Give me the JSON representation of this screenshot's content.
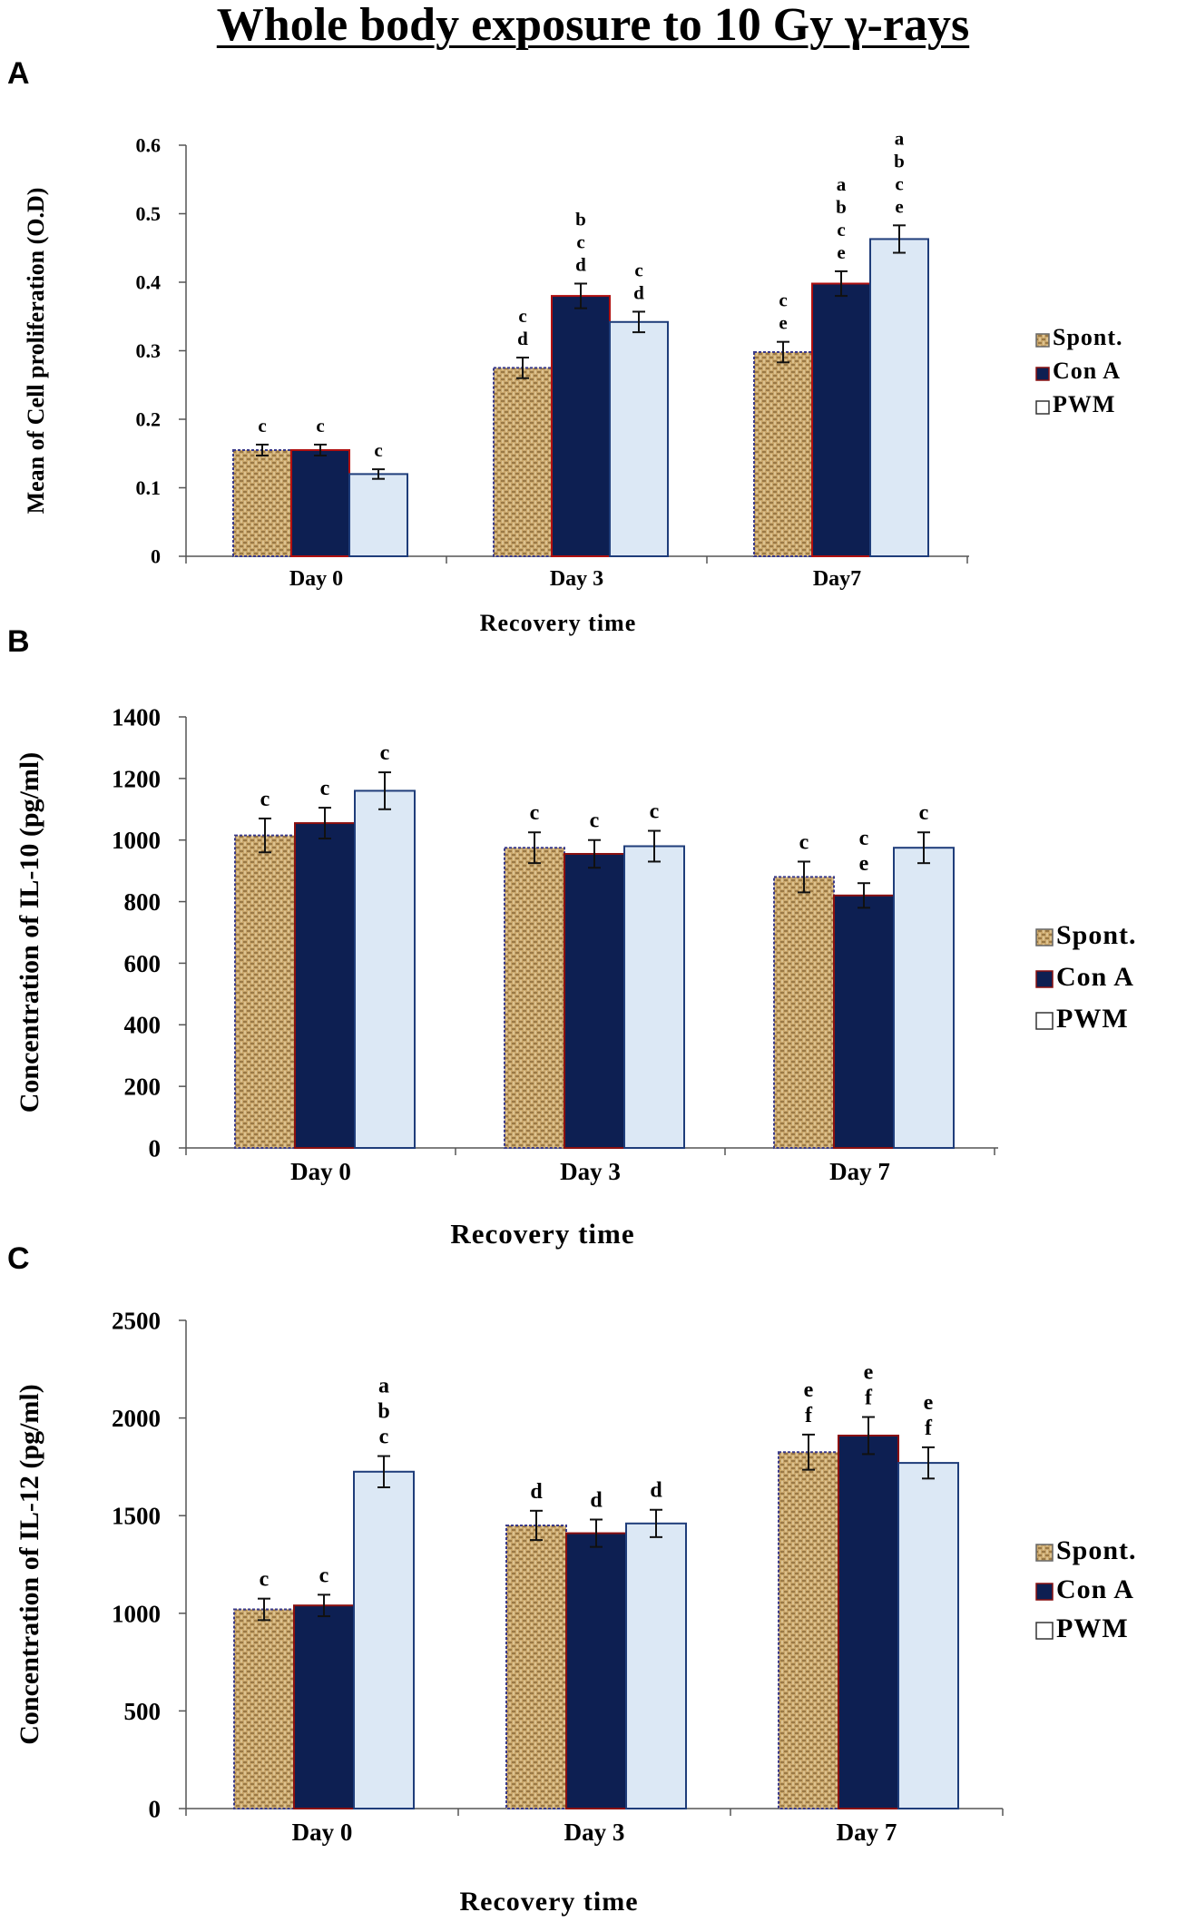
{
  "figure_title": "Whole body exposure to 10 Gy γ-rays",
  "colors": {
    "spont": "#c9a66b",
    "spont_dark": "#8a6a3a",
    "cona": "#0d1f52",
    "pwm": "#dce8f5",
    "pwm_border": "#1f3d7a"
  },
  "chart_data": [
    {
      "panel": "A",
      "type": "bar",
      "title": "",
      "xlabel": "Recovery time",
      "ylabel": "Mean of Cell proliferation (O.D)",
      "ylim": [
        0,
        0.6
      ],
      "yticks": [
        "0",
        "0.1",
        "0.2",
        "0.3",
        "0.4",
        "0.5",
        "0.6"
      ],
      "categories": [
        "Day 0",
        "Day 3",
        "Day7"
      ],
      "legend": [
        "Spont.",
        "Con A",
        "PWM"
      ],
      "series": [
        {
          "name": "Spont.",
          "values": [
            0.155,
            0.275,
            0.298
          ],
          "errors": [
            0.008,
            0.015,
            0.015
          ],
          "labels": [
            "c",
            "c\nd",
            "c\ne"
          ]
        },
        {
          "name": "Con A",
          "values": [
            0.155,
            0.38,
            0.398
          ],
          "errors": [
            0.008,
            0.018,
            0.018
          ],
          "labels": [
            "c",
            "b\nc\nd",
            "a\nb\nc\ne"
          ]
        },
        {
          "name": "PWM",
          "values": [
            0.12,
            0.342,
            0.463
          ],
          "errors": [
            0.007,
            0.015,
            0.02
          ],
          "labels": [
            "c",
            "c\nd",
            "a\nb\nc\ne"
          ]
        }
      ]
    },
    {
      "panel": "B",
      "type": "bar",
      "title": "",
      "xlabel": "Recovery time",
      "ylabel": "Concentration of IL-10 (pg/ml)",
      "ylim": [
        0,
        1400
      ],
      "yticks": [
        "0",
        "200",
        "400",
        "600",
        "800",
        "1000",
        "1200",
        "1400"
      ],
      "categories": [
        "Day 0",
        "Day 3",
        "Day 7"
      ],
      "legend": [
        "Spont.",
        "Con A",
        "PWM"
      ],
      "series": [
        {
          "name": "Spont.",
          "values": [
            1015,
            975,
            880
          ],
          "errors": [
            55,
            50,
            50
          ],
          "labels": [
            "c",
            "c",
            "c"
          ]
        },
        {
          "name": "Con A",
          "values": [
            1055,
            955,
            820
          ],
          "errors": [
            50,
            45,
            40
          ],
          "labels": [
            "c",
            "c",
            "c\ne"
          ]
        },
        {
          "name": "PWM",
          "values": [
            1160,
            980,
            975
          ],
          "errors": [
            60,
            50,
            50
          ],
          "labels": [
            "c",
            "c",
            "c"
          ]
        }
      ]
    },
    {
      "panel": "C",
      "type": "bar",
      "title": "",
      "xlabel": "Recovery time",
      "ylabel": "Concentration of IL-12 (pg/ml)",
      "ylim": [
        0,
        2500
      ],
      "yticks": [
        "0",
        "500",
        "1000",
        "1500",
        "2000",
        "2500"
      ],
      "categories": [
        "Day 0",
        "Day 3",
        "Day 7"
      ],
      "legend": [
        "Spont.",
        "Con A",
        "PWM"
      ],
      "series": [
        {
          "name": "Spont.",
          "values": [
            1020,
            1450,
            1825
          ],
          "errors": [
            55,
            75,
            90
          ],
          "labels": [
            "c",
            "d",
            "e\nf"
          ]
        },
        {
          "name": "Con A",
          "values": [
            1040,
            1410,
            1910
          ],
          "errors": [
            55,
            70,
            95
          ],
          "labels": [
            "c",
            "d",
            "e\nf"
          ]
        },
        {
          "name": "PWM",
          "values": [
            1725,
            1460,
            1770
          ],
          "errors": [
            80,
            70,
            80
          ],
          "labels": [
            "a\nb\nc",
            "d",
            "e\nf"
          ]
        }
      ]
    }
  ]
}
